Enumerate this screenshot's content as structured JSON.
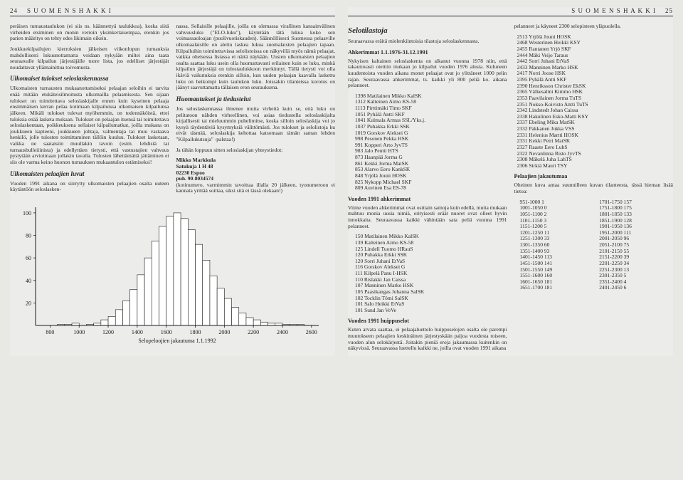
{
  "header": {
    "left_page_num": "24",
    "right_page_num": "25",
    "publication": "S U O M E N   S H A K K I"
  },
  "left": {
    "col1": {
      "p1": "peräisen turnaustaulukon (ei siis ns. käännettyä taulukkoa), koska siitä virheiden etsiminen on monin verroin yksinkertaisempaa, etenkin jos parien määritys on tehty edes likimain oikein.",
      "p2": "Joukkuekilpailujen kierroksien jälkeisen viikonlopun turnauksia mahdollisesti lukuunottamatta voidaan nykyään miltei aina taata seuraavalle kilpailun järjestäjälle tuore lista, jos edelliset järjestäjät noudattavat yllämainittua toivomusta.",
      "h1": "Ulkomaiset tulokset seloslaskennassa",
      "p3": "Ulkomaisten turnausten mukaanottamiseksi pelaajan seloihin ei tarvita enää mitään etukäteisilmoitusta ulkomailla pelaamisesta. Sen sijaan tulokset on toimitettava seloslaskijalle ennen kuin kyseinen pelaaja ensimmäisen kerran pelaa kotimaan kilpailuissa ulkomaisen kilpailunsa jälkeen. Mikäli tulokset tulevat myöhemmin, on todennäköistä, ettei tuloksia enää lasketa mukaan. Tulokset on pelaajan itsensä tai toimitettava seloslaskentaan, poikkeuksena sellaiset kilpailumatkat, joilla mukana on joukkueen kapteeni, joukkueen johtaja, valmentaja tai muu vastaava henkilö, jolle tulosten toimittaminen tällöin kuuluu. Tulokset lasketaan, vaikka ne saataisiin muullakin tavoin (esim. lehdistä tai turnausbulleiiinista) ja edellyttäen tietysti, että vastustajien vahvuus pystytään arvioimaan jollakin tavalla. Tulosten lähettämättä jättäminen ei siis ole varma keino huonon turnauksen mukaantulon estämiseksi!",
      "h2": "Ulkomaisten pelaajien luvut",
      "p4": "Vuoden 1991 aikana on siirrytty ulkomaisten pelaajien osalta uuteen käytäntöön seloslasken-"
    },
    "col2": {
      "p1": "nassa. Sellaisille pelaajille, joilla on olemassa virallinen kansainvälinen vahvuusluku (\"ELO-luku\"), käytetään tätä lukua koko sen voimassaoloajan (puolivuotiskauden). Säännöllisesti Suomessa pelaaville ulkomaalaisille on alettu laskea lukua suomalaisten pelaajien tapaan. Kilpailuihin toimitettavissa selolistoissa on näkyvillä myös nämä pelaajat, vaikka oheisessa listassa ei näitä näykään. Uusien ulkomaisten pelaajien osalta saattaa luku usein olla huomattavasti erilainen kuin se luku, minkä kilpailun järjestäjä on tulostaulukkoon merkinnyt. Tällä tietysti voi olla ikäviä vaikutuksia etenkin silloin, kun uuden pelaajan kaavalla laskettu luku on heikompi kuin taulukon luku. Joissakin tilanteissa korotus on jäänyt saavuttamatta tällaisen eron seurauksena.",
      "h1": "Huomautukset ja tiedustelut",
      "p2": "Jos seloslaskennassa ilmenee muita virheitä kuin se, että luku on pelitatoon nähden virheellinen, voi asiaa tiedustella seloslaskijalta kirjallisesti tai mieluummin puhelimitse, koska silloin seloslaskija voi jo kysyä täydentäviä kysymyksiä välittömästi. Jos tulokset ja selolistoja ku eivät täsmää, seloslaskija kehottaa katsomaan tämän saman lehden \"Kilpailukutsuja\" -palstaa!)",
      "p3": "Ja tähän loppuun sitten seloslaskijan yhteystiedot:",
      "addr1": "Mikko Markkula",
      "addr2": "Satukuja 1 H 48",
      "addr3": "02230 Espoo",
      "addr4": "puh. 90-8034574",
      "p4": "(kotinumero, varmimmin tavoittaa illalla 20 jälkeen, tyonumeroon ei kannata yrittää soittaa, siksi sitä ei tässä olekaan!)"
    },
    "chart": {
      "type": "histogram",
      "title": "Selopeloojien jakautuma 1.1.1992",
      "xlim": [
        700,
        2650
      ],
      "xtick_start": 800,
      "xtick_step": 200,
      "xtick_end": 2600,
      "ylim": [
        0,
        105
      ],
      "ytick_step": 20,
      "bin_width": 50,
      "bar_fill": "#ffffff",
      "bar_stroke": "#1a1a1a",
      "stroke_width": 0.6,
      "axis_color": "#1a1a1a",
      "bins": [
        {
          "x": 800,
          "h": 0
        },
        {
          "x": 850,
          "h": 1
        },
        {
          "x": 900,
          "h": 1
        },
        {
          "x": 950,
          "h": 2
        },
        {
          "x": 1000,
          "h": 0
        },
        {
          "x": 1050,
          "h": 1
        },
        {
          "x": 1100,
          "h": 2
        },
        {
          "x": 1150,
          "h": 5
        },
        {
          "x": 1200,
          "h": 8
        },
        {
          "x": 1250,
          "h": 14
        },
        {
          "x": 1300,
          "h": 22
        },
        {
          "x": 1350,
          "h": 32
        },
        {
          "x": 1400,
          "h": 45
        },
        {
          "x": 1450,
          "h": 60
        },
        {
          "x": 1500,
          "h": 75
        },
        {
          "x": 1550,
          "h": 88
        },
        {
          "x": 1600,
          "h": 97
        },
        {
          "x": 1650,
          "h": 100
        },
        {
          "x": 1700,
          "h": 95
        },
        {
          "x": 1750,
          "h": 85
        },
        {
          "x": 1800,
          "h": 72
        },
        {
          "x": 1850,
          "h": 58
        },
        {
          "x": 1900,
          "h": 44
        },
        {
          "x": 1950,
          "h": 33
        },
        {
          "x": 2000,
          "h": 24
        },
        {
          "x": 2050,
          "h": 16
        },
        {
          "x": 2100,
          "h": 11
        },
        {
          "x": 2150,
          "h": 7
        },
        {
          "x": 2200,
          "h": 5
        },
        {
          "x": 2250,
          "h": 3
        },
        {
          "x": 2300,
          "h": 2
        },
        {
          "x": 2350,
          "h": 2
        },
        {
          "x": 2400,
          "h": 1
        },
        {
          "x": 2450,
          "h": 1
        },
        {
          "x": 2500,
          "h": 1
        },
        {
          "x": 2550,
          "h": 0
        }
      ]
    }
  },
  "right": {
    "col1": {
      "h0": "Selotilastoja",
      "p1": "Seuraavassa eräitä mielenkiintoisia tilastoja seloslaskennasta.",
      "h1": "Ahkerimmat 1.1.1976-31.12.1991",
      "p2": "Nykyisen kaltainen seloslaskenta on alkanut vuonna 1978 niin, että takautuvasti otettiin mukaan jo kilpailut vuoden 1976 alusta. Kuluneen kuudentoista vuoden aikana monet pelaajat ovat jo ylittäneet 1000 pelin rajan. Seuraavassa ahkerimmat, ts. kaikki yli 800 peliä ko. aikana pelanneet.",
      "list1": [
        "1398 Matilainen Mikko KalSK",
        "1312 Kalteinen Aimo KS-58",
        "1113 Pirttimäki Timo SKF",
        "1051 Pyhälä Antti SKF",
        "1041 Kulmala Armas SSL/Yks.j.",
        "1037 Puhakka Erkki SSK",
        "1019 Gorskov Aleksei G",
        " 998 Pesonen Pekka HSK",
        " 991 Kopperi Arto JyvTS",
        " 983 Jalo Pentti HTS",
        " 873 Haanpää Jorma G",
        " 861 Kekki Jorma MatSK",
        " 853 Alarvo Eero KankSK",
        " 848 Yrjölä Jouni HOSK",
        " 825 Nykopp Michael SKF",
        " 809 Auvinen Esa ES-78"
      ],
      "h2": "Vuoden 1991 ahkerimmat",
      "p3": "Viime vuoden ahkerimmat ovat osittain samoja kuin edellä, mutta mukaan mahtuu monia uusia nimiä, erityisesti eräät nuoret ovat olleet hyvin innokkaita. Seuraavassa kaikki vähintään sata peliä vuonna 1991 pelanneet.",
      "list2": [
        "150 Matilainen Mikko KalSK",
        "139 Kalteinen Aimo KS-58",
        "125 Lindell Tuomo HRauS",
        "120 Puhakka Erkki SSK",
        "120 Sorri Juhani EtVaS",
        "116 Gorskov Aleksei G",
        "111 Kilpelä Panu I-HSK",
        "110 Rislakki Jan Caissa",
        "107 Manninen Marko HSK",
        "105 Paasikangas Johanna SalSK",
        "102 Tocklin Tömi SalSK",
        "101 Salo Heikki EtVaS",
        "101 Sund Jan VeVe"
      ],
      "h3": "Vuoden 1991 huippuselot",
      "p4": "Kuten arvata saattaa, ei pelaajaluettelo huippuselojen osalta ole parempi muutokseen pelaajien keskinäinen järjestyskään paljoa vuodesta toiseen, vuoden alun selokärjestä. Joitakin pieniä eroja jakaumassa kuitenkin on näkyvissä. Seuraavassa luettellu kaikki ne, joilla ovat vuoden 1991 aikana"
    },
    "col2": {
      "p1": "pelanneet ja käyneet 2300 selopisteen yläpuolella.",
      "list1": [
        "2513 Yrjölä Jouni HOSK",
        "2468 Westerinen Heikki KSY",
        "2455 Rantanen Yrjö SKF",
        "2444 Mäki Veijo Taraus",
        "2442 Sorri Juhani EtVaS",
        "2433 Manninen Marko HSK",
        "2417 Norri Joose HSK",
        "2395 Pyhälä Antti SKF",
        "2390 Henriksson Christer EkSK",
        "2365 Välkesalmi Kimmo HSK",
        "2353 Paavilainen Jorma TuTS",
        "2351 Nokso-Koivisto Antti TuTS",
        "2342 Lindstedt Johan Caissa",
        "2338 Hakulinen Esko-Matti KSY",
        "2337 Ebeling Mika MatSK",
        "2332 Pakkanen Jukka VSS",
        "2331 Helenius Martti HOSK",
        "2331 Kekki Petri MatSK",
        "2327 Raaste Eero LuhS",
        "2322 Nevanlinna Risto JyvTS",
        "2308 Mäkelä Juha LahTS",
        "2306 Sirkiä Mauri TSY"
      ],
      "h1": "Pelaajien jakautumaa",
      "p2": "Oheinen kuva antaa suunnilleen kuvan tilanteesta, tässä hieman lisää tietoa:",
      "list2": [
        " 951-1000 1",
        "1001-1050 0",
        "1051-1100 2",
        "1101-1150 3",
        "1151-1200 5",
        "1201-1250 11",
        "1251-1300 33",
        "1301-1350 60",
        "1351-1400 93",
        "1401-1450 113",
        "1451-1500 141",
        "1501-1550 149",
        "1551-1600 160",
        "1601-1650 181",
        "1651-1700 181",
        "1701-1750 157",
        "1751-1800 175",
        "1801-1850 133",
        "1851-1900 128",
        "1901-1950 136",
        "1951-2000 111",
        "2001-2050 96",
        "2051-2100 75",
        "2101-2150 55",
        "2151-2200 39",
        "2201-2250 34",
        "2251-2300 13",
        "2301-2350 5",
        "2351-2400 4",
        "2401-2450 6"
      ]
    }
  }
}
